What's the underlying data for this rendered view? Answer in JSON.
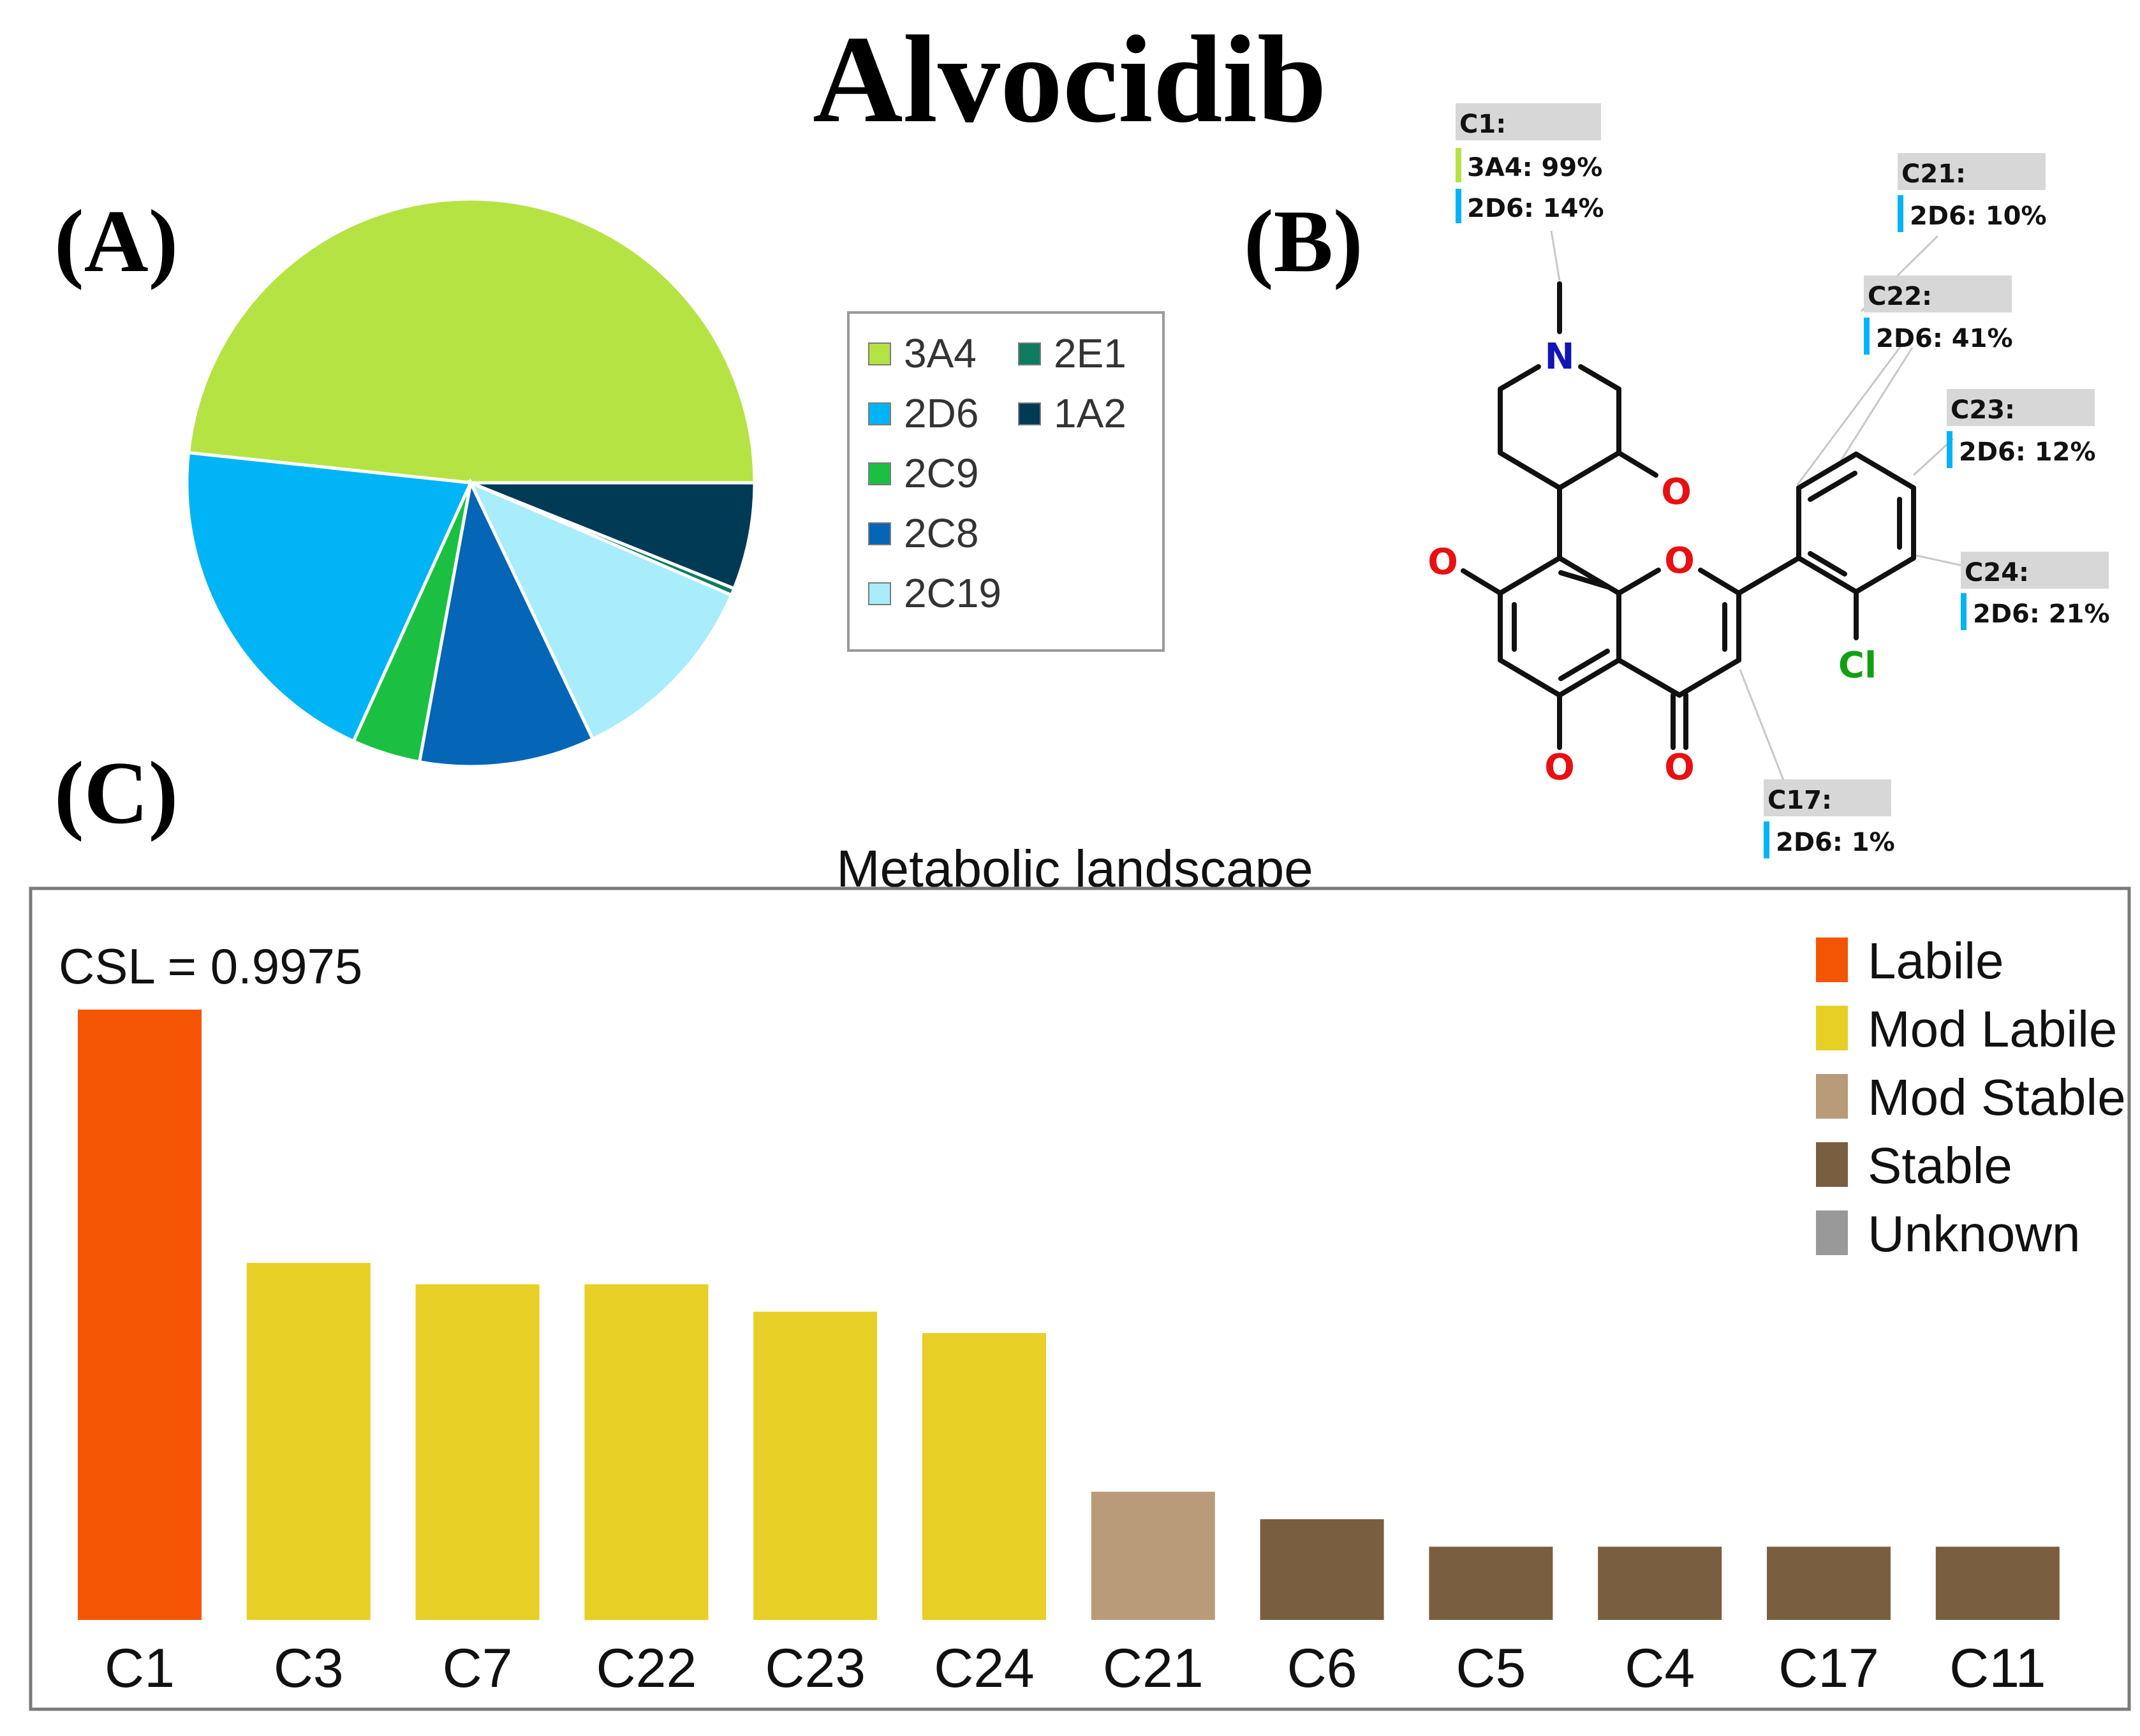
{
  "figure_title": "Alvocidib",
  "panel_labels": {
    "a": "(A)",
    "b": "(B)",
    "c": "(C)"
  },
  "chart_data": [
    {
      "type": "pie",
      "panel": "(A)",
      "title": "",
      "slices": [
        {
          "label": "3A4",
          "value": 48.5,
          "color": "#b5e344"
        },
        {
          "label": "2D6",
          "value": 20.0,
          "color": "#00b4f5"
        },
        {
          "label": "2C9",
          "value": 3.9,
          "color": "#1bc043"
        },
        {
          "label": "2C8",
          "value": 10.0,
          "color": "#0565b6"
        },
        {
          "label": "2C19",
          "value": 11.5,
          "color": "#a9ecfb"
        },
        {
          "label": "2E1",
          "value": 0.4,
          "color": "#0e7c5f"
        },
        {
          "label": "1A2",
          "value": 6.1,
          "color": "#003a55"
        }
      ],
      "legend": {
        "placement": "right",
        "columns": [
          [
            "3A4",
            "2D6",
            "2C9",
            "2C8",
            "2C19"
          ],
          [
            "2E1",
            "1A2"
          ]
        ]
      }
    },
    {
      "type": "bar",
      "panel": "(C)",
      "title": "Metabolic landscape",
      "annotation": "CSL = 0.9975",
      "xlabel": "",
      "ylabel": "",
      "ylim": [
        0,
        100
      ],
      "categories": [
        "C1",
        "C3",
        "C7",
        "C22",
        "C23",
        "C24",
        "C21",
        "C6",
        "C5",
        "C4",
        "C17",
        "C11"
      ],
      "values": [
        100,
        58.5,
        55,
        55,
        50.5,
        47,
        21,
        16.5,
        12,
        12,
        12,
        12
      ],
      "classes": [
        "Labile",
        "Mod Labile",
        "Mod Labile",
        "Mod Labile",
        "Mod Labile",
        "Mod Labile",
        "Mod Stable",
        "Stable",
        "Stable",
        "Stable",
        "Stable",
        "Stable"
      ],
      "legend": [
        {
          "label": "Labile",
          "color": "#f45505"
        },
        {
          "label": "Mod Labile",
          "color": "#e8cf26"
        },
        {
          "label": "Mod Stable",
          "color": "#b99a79"
        },
        {
          "label": "Stable",
          "color": "#7a5e40"
        },
        {
          "label": "Unknown",
          "color": "#999999"
        }
      ]
    }
  ],
  "molecule": {
    "panel": "(B)",
    "atom_labels": {
      "n": "N",
      "o_hydroxy_ring": "O",
      "o_phenol_left": "O",
      "o_ring": "O",
      "o_phenol_bottom": "O",
      "o_carbonyl": "O",
      "cl": "Cl"
    },
    "atom_colors": {
      "nitrogen": "#1414b4",
      "oxygen": "#e81010",
      "chlorine": "#12a012",
      "bond": "#111111"
    },
    "site_annotations": [
      {
        "site": "C1:",
        "enzymes": [
          {
            "label": "3A4: 99%",
            "color": "#b5e344"
          },
          {
            "label": "2D6: 14%",
            "color": "#00b4f5"
          }
        ]
      },
      {
        "site": "C21:",
        "enzymes": [
          {
            "label": "2D6: 10%",
            "color": "#00b4f5"
          }
        ]
      },
      {
        "site": "C22:",
        "enzymes": [
          {
            "label": "2D6: 41%",
            "color": "#00b4f5"
          }
        ]
      },
      {
        "site": "C23:",
        "enzymes": [
          {
            "label": "2D6: 12%",
            "color": "#00b4f5"
          }
        ]
      },
      {
        "site": "C24:",
        "enzymes": [
          {
            "label": "2D6: 21%",
            "color": "#00b4f5"
          }
        ]
      },
      {
        "site": "C17:",
        "enzymes": [
          {
            "label": "2D6: 1%",
            "color": "#00b4f5"
          }
        ]
      }
    ]
  }
}
